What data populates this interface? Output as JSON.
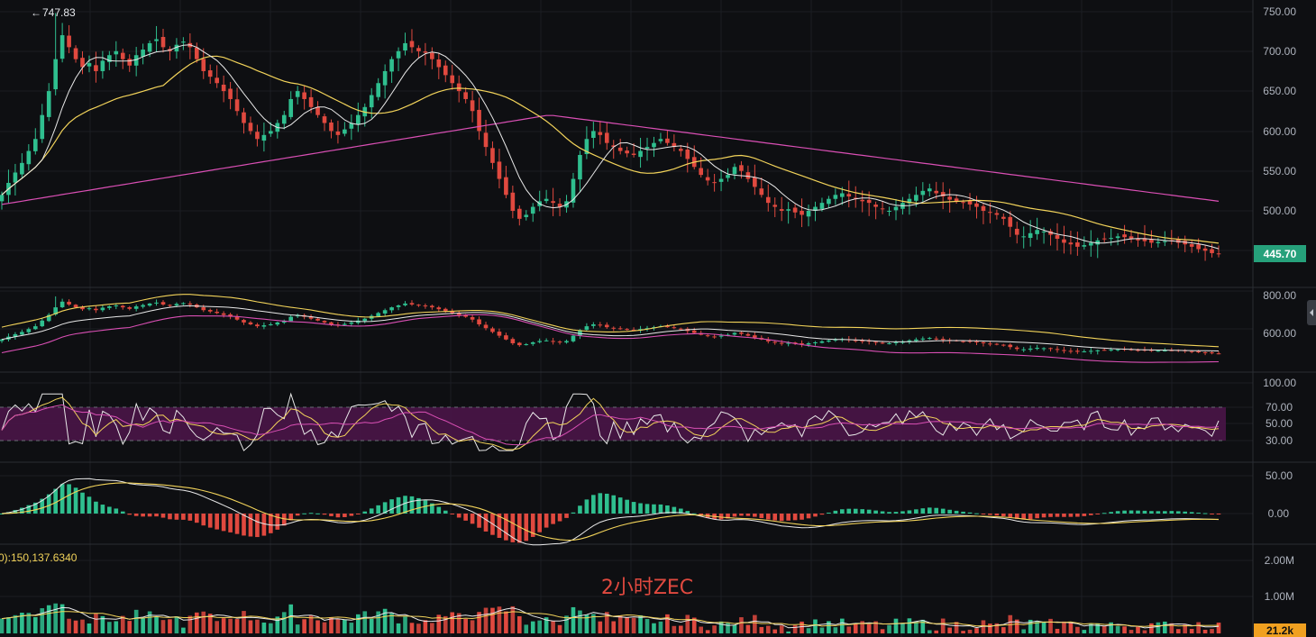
{
  "title": "2小时ZEC",
  "colors": {
    "background": "#0e0f12",
    "up": "#2fbf8f",
    "down": "#e0493f",
    "ma_short": "#e8e8e8",
    "ma_mid": "#f2d35a",
    "ma_long": "#d94fb4",
    "rsi_band": "#4a1548",
    "current_price_tag": "#26a17b",
    "volume_tag": "#f0a020",
    "grid": "#1c1e23",
    "axis_text": "#aeb3bd"
  },
  "main_panel": {
    "high_marker": "747.83",
    "current_price": "445.70",
    "axis_ticks": [
      "750.00",
      "700.00",
      "650.00",
      "600.00",
      "550.00",
      "500.00"
    ]
  },
  "second_panel": {
    "axis_ticks": [
      "800.00",
      "600.00"
    ]
  },
  "rsi_panel": {
    "axis_ticks": [
      "100.00",
      "70.00",
      "50.00",
      "30.00"
    ]
  },
  "macd_panel": {
    "axis_ticks": [
      "50.00",
      "0.00"
    ],
    "readout": "0):150,137.6340"
  },
  "volume_panel": {
    "axis_ticks": [
      "2.00M",
      "1.00M"
    ],
    "current_volume": "21.2k"
  },
  "chart_data": {
    "type": "candlestick",
    "title": "2小时ZEC",
    "price_axis_ticks": [
      750,
      700,
      650,
      600,
      550,
      500
    ],
    "price_range": [
      425,
      765
    ],
    "high": 747.83,
    "last": 445.7,
    "close_series": [
      520,
      535,
      548,
      560,
      575,
      590,
      620,
      650,
      690,
      720,
      705,
      690,
      680,
      685,
      675,
      688,
      695,
      700,
      690,
      682,
      695,
      702,
      710,
      715,
      705,
      700,
      708,
      712,
      705,
      690,
      675,
      668,
      660,
      650,
      640,
      625,
      610,
      600,
      590,
      595,
      600,
      610,
      620,
      640,
      650,
      640,
      630,
      620,
      610,
      600,
      595,
      602,
      610,
      620,
      630,
      645,
      660,
      675,
      690,
      700,
      710,
      705,
      700,
      698,
      690,
      680,
      670,
      660,
      650,
      640,
      625,
      600,
      580,
      560,
      540,
      520,
      500,
      490,
      495,
      505,
      512,
      515,
      510,
      505,
      512,
      540,
      570,
      590,
      600,
      595,
      585,
      580,
      575,
      572,
      570,
      575,
      580,
      585,
      590,
      585,
      580,
      575,
      565,
      555,
      545,
      538,
      535,
      540,
      545,
      555,
      550,
      540,
      530,
      520,
      510,
      505,
      500,
      502,
      498,
      495,
      500,
      505,
      510,
      515,
      520,
      522,
      518,
      515,
      512,
      510,
      505,
      502,
      500,
      505,
      510,
      515,
      520,
      525,
      528,
      522,
      518,
      514,
      512,
      510,
      508,
      505,
      500,
      498,
      495,
      490,
      480,
      470,
      468,
      472,
      476,
      474,
      470,
      465,
      460,
      458,
      455,
      457,
      460,
      463,
      465,
      466,
      468,
      467,
      465,
      463,
      462,
      460,
      461,
      462,
      463,
      460,
      458,
      455,
      452,
      450,
      447,
      445.7
    ],
    "rsi_levels": [
      70,
      50,
      30
    ],
    "volume_axis_ticks": [
      "2.00M",
      "1.00M"
    ],
    "volume_last": "21.2k"
  }
}
